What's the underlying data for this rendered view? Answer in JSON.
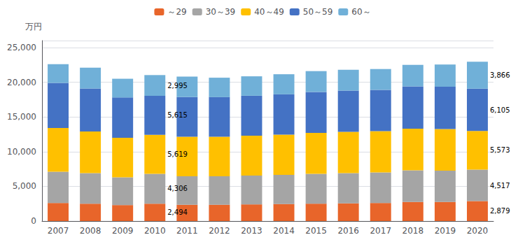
{
  "chart_data": {
    "type": "bar",
    "stacked": true,
    "ylabel": "万円",
    "categories": [
      "2007",
      "2008",
      "2009",
      "2010",
      "2011",
      "2012",
      "2013",
      "2014",
      "2015",
      "2016",
      "2017",
      "2018",
      "2019",
      "2020"
    ],
    "series": [
      {
        "name": "～29",
        "color": "#E8652A",
        "values": [
          2600,
          2500,
          2300,
          2494,
          2350,
          2350,
          2400,
          2450,
          2500,
          2550,
          2600,
          2750,
          2750,
          2879
        ],
        "value_labels": [
          null,
          null,
          null,
          "2,494",
          null,
          null,
          null,
          null,
          null,
          null,
          null,
          null,
          null,
          "2,879"
        ]
      },
      {
        "name": "30～39",
        "color": "#A5A5A5",
        "values": [
          4500,
          4400,
          4000,
          4306,
          4100,
          4100,
          4150,
          4200,
          4300,
          4350,
          4400,
          4550,
          4500,
          4517
        ],
        "value_labels": [
          null,
          null,
          null,
          "4,306",
          null,
          null,
          null,
          null,
          null,
          null,
          null,
          null,
          null,
          "4,517"
        ]
      },
      {
        "name": "40～49",
        "color": "#FFC000",
        "values": [
          6300,
          6000,
          5700,
          5619,
          5700,
          5700,
          5750,
          5800,
          5900,
          5950,
          5950,
          6000,
          6000,
          5573
        ],
        "value_labels": [
          null,
          null,
          null,
          "5,619",
          null,
          null,
          null,
          null,
          null,
          null,
          null,
          null,
          null,
          "5,573"
        ]
      },
      {
        "name": "50～59",
        "color": "#4472C4",
        "values": [
          6500,
          6200,
          5800,
          5615,
          5700,
          5700,
          5750,
          5800,
          5900,
          5950,
          5950,
          6100,
          6100,
          6105
        ],
        "value_labels": [
          null,
          null,
          null,
          "5,615",
          null,
          null,
          null,
          null,
          null,
          null,
          null,
          null,
          null,
          "6,105"
        ]
      },
      {
        "name": "60～",
        "color": "#70B0D8",
        "values": [
          2700,
          3000,
          2700,
          2995,
          2950,
          2800,
          2800,
          2900,
          3000,
          3000,
          3000,
          3100,
          3200,
          3866
        ],
        "value_labels": [
          null,
          null,
          null,
          "2,995",
          null,
          null,
          null,
          null,
          null,
          null,
          null,
          null,
          null,
          "3,866"
        ]
      }
    ],
    "ylim": [
      0,
      26000
    ],
    "yticks": [
      0,
      {
        "value": 5000,
        "label": "5,000"
      },
      {
        "value": 10000,
        "label": "10,000"
      },
      {
        "value": 15000,
        "label": "15,000"
      },
      {
        "value": 20000,
        "label": "20,000"
      },
      {
        "value": 25000,
        "label": "25,000"
      }
    ],
    "grid": true,
    "legend": "top",
    "data_labels": true
  }
}
